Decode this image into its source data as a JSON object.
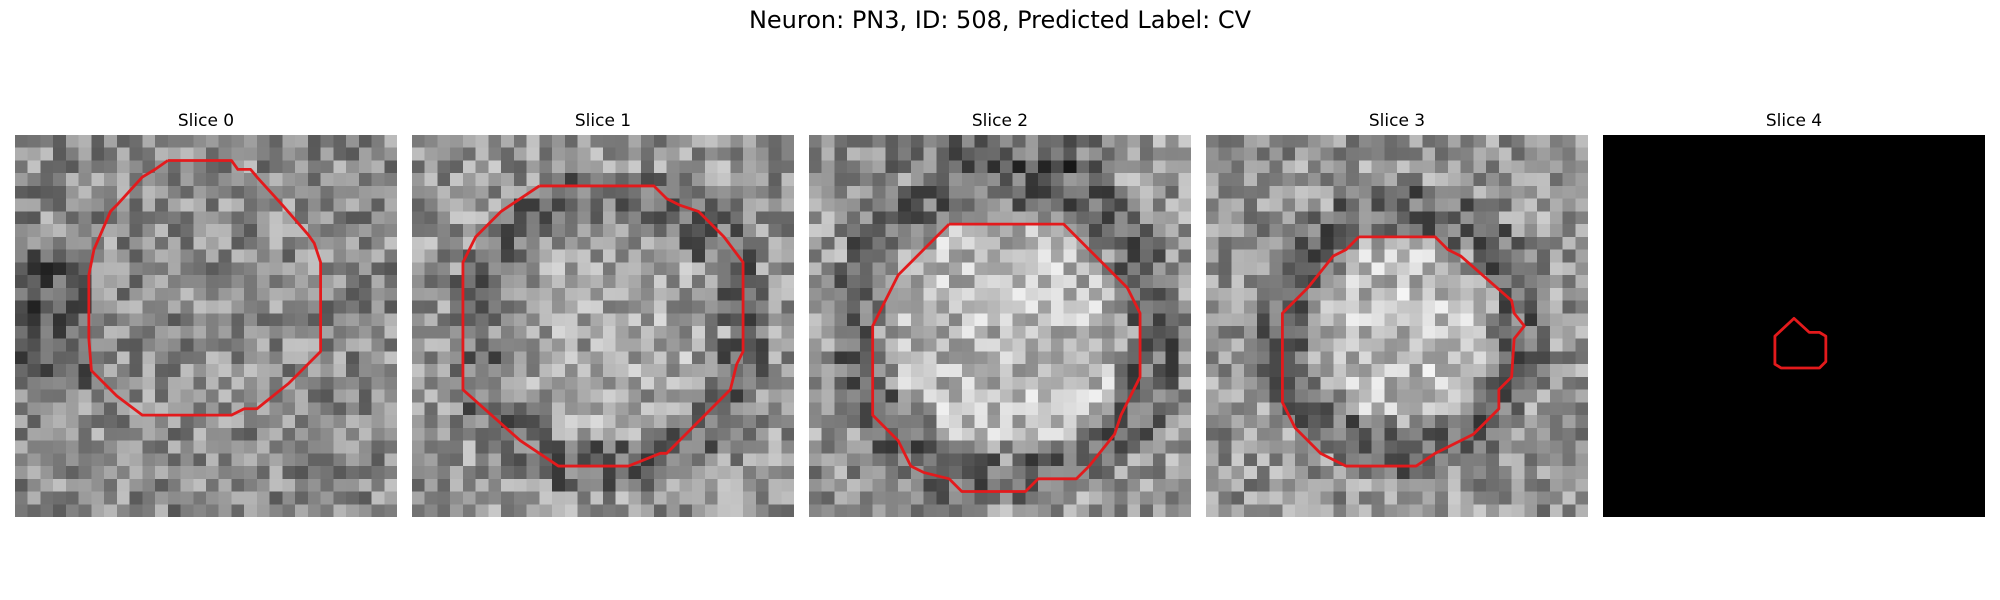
{
  "figure": {
    "title": "Neuron: PN3, ID: 508, Predicted Label: CV"
  },
  "colors": {
    "contour": "#e31a1c",
    "background": "#ffffff"
  },
  "slices": [
    {
      "label": "Slice 0",
      "image": "grayscale-microscopy-patch",
      "contour": "red-outline-large-octagon"
    },
    {
      "label": "Slice 1",
      "image": "grayscale-microscopy-patch",
      "contour": "red-outline-large-octagon"
    },
    {
      "label": "Slice 2",
      "image": "grayscale-microscopy-patch",
      "contour": "red-outline-large-octagon"
    },
    {
      "label": "Slice 3",
      "image": "grayscale-microscopy-patch",
      "contour": "red-outline-octagon"
    },
    {
      "label": "Slice 4",
      "image": "black-patch",
      "contour": "red-outline-small-pentagon"
    }
  ]
}
